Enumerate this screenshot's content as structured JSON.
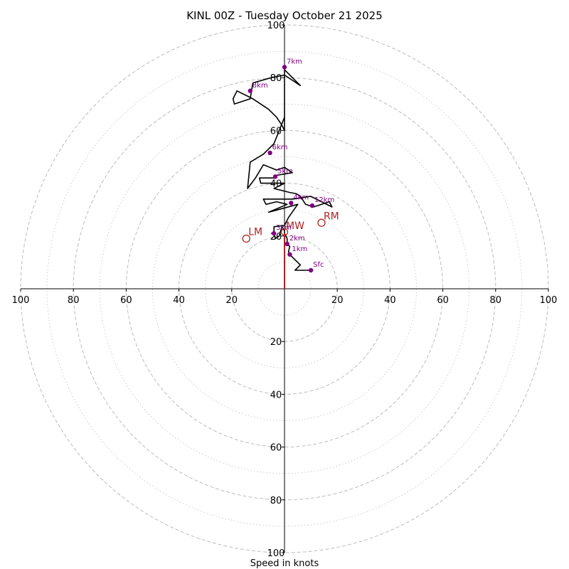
{
  "chart_data": {
    "type": "hodograph",
    "title": "KINL 00Z - Tuesday October 21 2025",
    "xlabel": "Speed in knots",
    "max_speed": 100,
    "ring_major": [
      20,
      40,
      60,
      80,
      100
    ],
    "ring_minor": [
      10,
      30,
      50,
      70,
      90
    ],
    "x_tick_labels": [
      "100",
      "80",
      "60",
      "40",
      "20",
      "20",
      "40",
      "60",
      "80",
      "100"
    ],
    "x_tick_values": [
      -100,
      -80,
      -60,
      -40,
      -20,
      20,
      40,
      60,
      80,
      100
    ],
    "y_tick_labels": [
      "100",
      "80",
      "60",
      "40",
      "20",
      "20",
      "40",
      "60",
      "80",
      "100"
    ],
    "y_tick_values": [
      100,
      80,
      60,
      40,
      20,
      -20,
      -40,
      -60,
      -80,
      -100
    ],
    "colors": {
      "trace": "#000000",
      "height_marker": "#800080",
      "motion": "#b22222",
      "grid": "#bbbbbb",
      "axis": "#000000"
    },
    "trace": [
      [
        10,
        7
      ],
      [
        4,
        7
      ],
      [
        6,
        9
      ],
      [
        4,
        11
      ],
      [
        2,
        13
      ],
      [
        1.5,
        14
      ],
      [
        2,
        16
      ],
      [
        1,
        17
      ],
      [
        1,
        19
      ],
      [
        0,
        21
      ],
      [
        0,
        22
      ],
      [
        -1,
        23.5
      ],
      [
        -2,
        20
      ],
      [
        -3.5,
        19
      ],
      [
        -4,
        21.5
      ],
      [
        -4,
        23.5
      ],
      [
        0,
        24
      ],
      [
        1.5,
        27
      ],
      [
        5,
        32
      ],
      [
        -6,
        29
      ],
      [
        1,
        32
      ],
      [
        -3,
        33
      ],
      [
        -7,
        32
      ],
      [
        -8,
        34
      ],
      [
        -3,
        34
      ],
      [
        3,
        34
      ],
      [
        10,
        35
      ],
      [
        18,
        31
      ],
      [
        17,
        33
      ],
      [
        11,
        31
      ],
      [
        8,
        32
      ],
      [
        6,
        35
      ],
      [
        4.5,
        36
      ],
      [
        2,
        36.5
      ],
      [
        -4,
        38
      ],
      [
        0,
        40
      ],
      [
        -9,
        40
      ],
      [
        -9.5,
        42
      ],
      [
        -4,
        42
      ],
      [
        -3,
        43
      ],
      [
        3,
        44
      ],
      [
        0,
        46
      ],
      [
        -3,
        45
      ],
      [
        -8,
        47
      ],
      [
        -11,
        42
      ],
      [
        -14,
        38
      ],
      [
        -13,
        48
      ],
      [
        -8,
        51
      ],
      [
        -4,
        55
      ],
      [
        0,
        65
      ],
      [
        0,
        60
      ],
      [
        -1,
        62
      ],
      [
        -3,
        65
      ],
      [
        -6,
        68
      ],
      [
        -12,
        72
      ],
      [
        -18,
        75
      ],
      [
        -19.5,
        72
      ],
      [
        -19,
        70
      ],
      [
        -13,
        72
      ],
      [
        -12,
        78
      ],
      [
        -5,
        80
      ],
      [
        0,
        81
      ],
      [
        6,
        77
      ],
      [
        0,
        83
      ],
      [
        0,
        72
      ],
      [
        0,
        64
      ]
    ],
    "height_markers": [
      {
        "label": "Sfc",
        "u": 10,
        "v": 7
      },
      {
        "label": "1km",
        "u": 2,
        "v": 13
      },
      {
        "label": "2km",
        "u": 1,
        "v": 17
      },
      {
        "label": "3km",
        "u": -4,
        "v": 21
      },
      {
        "label": "4km",
        "u": 2.5,
        "v": 32.5
      },
      {
        "label": "5km",
        "u": -3.5,
        "v": 42.5
      },
      {
        "label": "6km",
        "u": -5.5,
        "v": 51.5
      },
      {
        "label": "7km",
        "u": 0,
        "v": 84
      },
      {
        "label": "8km",
        "u": -13,
        "v": 75
      },
      {
        "label": "12km",
        "u": 10.5,
        "v": 31.5
      }
    ],
    "storm_motion": [
      {
        "label": "RM",
        "u": 14,
        "v": 25
      },
      {
        "label": "LM",
        "u": -14.5,
        "v": 19
      },
      {
        "label": "MW",
        "u": 0,
        "v": 21.5
      }
    ],
    "mean_wind_vector": {
      "from": [
        0,
        0
      ],
      "to": [
        0,
        21
      ]
    }
  }
}
